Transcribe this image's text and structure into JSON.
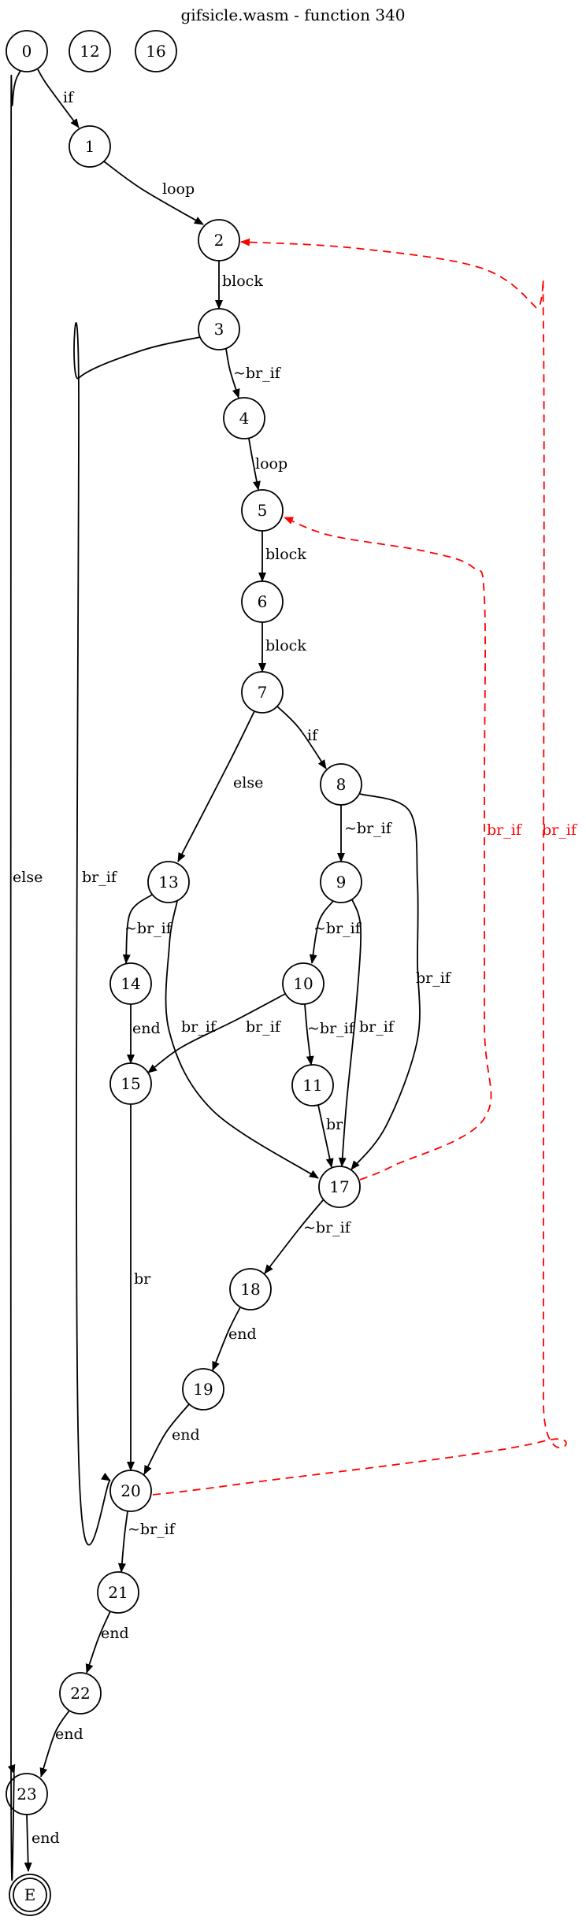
{
  "title": "gifsicle.wasm - function 340",
  "colors": {
    "normal": "#000000",
    "back_edge": "#ff0000"
  },
  "nodes": [
    {
      "id": "0",
      "label": "0"
    },
    {
      "id": "12",
      "label": "12"
    },
    {
      "id": "16",
      "label": "16"
    },
    {
      "id": "1",
      "label": "1"
    },
    {
      "id": "2",
      "label": "2"
    },
    {
      "id": "3",
      "label": "3"
    },
    {
      "id": "4",
      "label": "4"
    },
    {
      "id": "5",
      "label": "5"
    },
    {
      "id": "6",
      "label": "6"
    },
    {
      "id": "7",
      "label": "7"
    },
    {
      "id": "8",
      "label": "8"
    },
    {
      "id": "13",
      "label": "13"
    },
    {
      "id": "9",
      "label": "9"
    },
    {
      "id": "14",
      "label": "14"
    },
    {
      "id": "10",
      "label": "10"
    },
    {
      "id": "15",
      "label": "15"
    },
    {
      "id": "11",
      "label": "11"
    },
    {
      "id": "17",
      "label": "17"
    },
    {
      "id": "18",
      "label": "18"
    },
    {
      "id": "19",
      "label": "19"
    },
    {
      "id": "20",
      "label": "20"
    },
    {
      "id": "21",
      "label": "21"
    },
    {
      "id": "22",
      "label": "22"
    },
    {
      "id": "23",
      "label": "23"
    },
    {
      "id": "E",
      "label": "E",
      "shape": "doublecircle"
    }
  ],
  "edges": [
    {
      "from": "0",
      "to": "1",
      "label": "if"
    },
    {
      "from": "0",
      "to": "23",
      "label": "else"
    },
    {
      "from": "1",
      "to": "2",
      "label": "loop"
    },
    {
      "from": "2",
      "to": "3",
      "label": "block"
    },
    {
      "from": "3",
      "to": "4",
      "label": "~br_if"
    },
    {
      "from": "3",
      "to": "20",
      "label": "br_if"
    },
    {
      "from": "4",
      "to": "5",
      "label": "loop"
    },
    {
      "from": "5",
      "to": "6",
      "label": "block"
    },
    {
      "from": "6",
      "to": "7",
      "label": "block"
    },
    {
      "from": "7",
      "to": "8",
      "label": "if"
    },
    {
      "from": "7",
      "to": "13",
      "label": "else"
    },
    {
      "from": "8",
      "to": "9",
      "label": "~br_if"
    },
    {
      "from": "8",
      "to": "17",
      "label": "br_if"
    },
    {
      "from": "9",
      "to": "10",
      "label": "~br_if"
    },
    {
      "from": "9",
      "to": "17",
      "label": "br_if"
    },
    {
      "from": "10",
      "to": "11",
      "label": "~br_if"
    },
    {
      "from": "10",
      "to": "15",
      "label": "br_if"
    },
    {
      "from": "11",
      "to": "17",
      "label": "br"
    },
    {
      "from": "13",
      "to": "14",
      "label": "~br_if"
    },
    {
      "from": "13",
      "to": "17",
      "label": "br_if"
    },
    {
      "from": "14",
      "to": "15",
      "label": "end"
    },
    {
      "from": "15",
      "to": "20",
      "label": "br"
    },
    {
      "from": "17",
      "to": "18",
      "label": "~br_if"
    },
    {
      "from": "17",
      "to": "5",
      "label": "br_if",
      "back": true
    },
    {
      "from": "18",
      "to": "19",
      "label": "end"
    },
    {
      "from": "19",
      "to": "20",
      "label": "end"
    },
    {
      "from": "20",
      "to": "21",
      "label": "~br_if"
    },
    {
      "from": "20",
      "to": "2",
      "label": "br_if",
      "back": true
    },
    {
      "from": "21",
      "to": "22",
      "label": "end"
    },
    {
      "from": "22",
      "to": "23",
      "label": "end"
    },
    {
      "from": "23",
      "to": "E",
      "label": "end"
    }
  ]
}
